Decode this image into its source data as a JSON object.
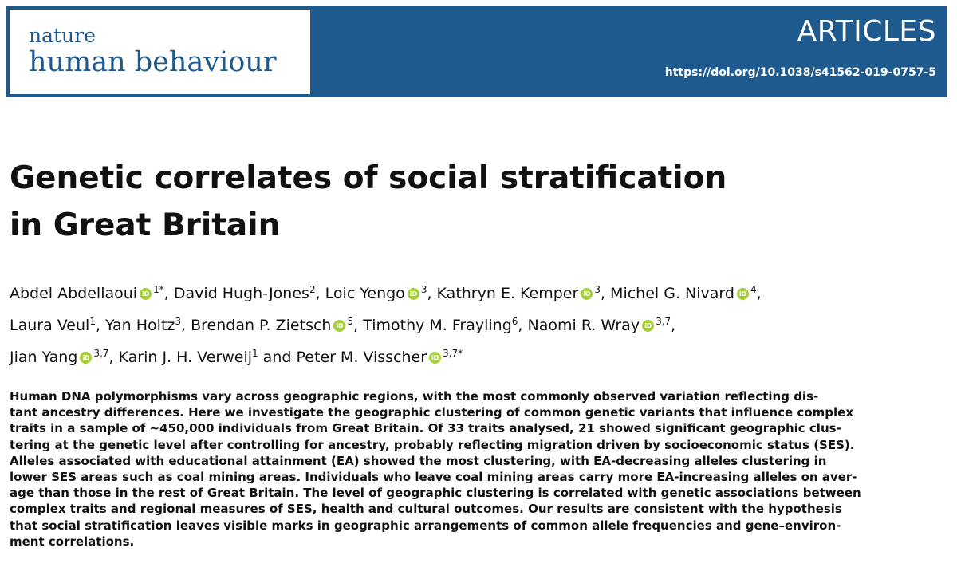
{
  "journal": {
    "name_small": "nature",
    "name_big": "human behaviour",
    "section": "ARTICLES",
    "doi": "https://doi.org/10.1038/s41562-019-0757-5",
    "brand_color": "#1e5a8e",
    "orcid_color": "#a6ce39"
  },
  "article": {
    "title_lines": [
      "Genetic correlates of social stratification",
      "in Great Britain"
    ],
    "author_lines": [
      [
        {
          "name": "Abdel Abdellaoui",
          "orcid": true,
          "sup": "1*",
          "sep": ", "
        },
        {
          "name": "David Hugh-Jones",
          "orcid": false,
          "sup": "2",
          "sep": ", "
        },
        {
          "name": "Loic Yengo",
          "orcid": true,
          "sup": "3",
          "sep": ", "
        },
        {
          "name": "Kathryn E. Kemper",
          "orcid": true,
          "sup": "3",
          "sep": ", "
        },
        {
          "name": "Michel G. Nivard",
          "orcid": true,
          "sup": "4",
          "sep": ","
        }
      ],
      [
        {
          "name": "Laura Veul",
          "orcid": false,
          "sup": "1",
          "sep": ", "
        },
        {
          "name": "Yan Holtz",
          "orcid": false,
          "sup": "3",
          "sep": ", "
        },
        {
          "name": "Brendan P. Zietsch",
          "orcid": true,
          "sup": "5",
          "sep": ", "
        },
        {
          "name": "Timothy M. Frayling",
          "orcid": false,
          "sup": "6",
          "sep": ", "
        },
        {
          "name": "Naomi R. Wray",
          "orcid": true,
          "sup": "3,7",
          "sep": ","
        }
      ],
      [
        {
          "name": "Jian Yang",
          "orcid": true,
          "sup": "3,7",
          "sep": ", "
        },
        {
          "name": "Karin J. H. Verweij",
          "orcid": false,
          "sup": "1",
          "sep": " and "
        },
        {
          "name": "Peter M. Visscher",
          "orcid": true,
          "sup": "3,7*",
          "sep": ""
        }
      ]
    ],
    "orcid_icon_text": "iD",
    "abstract_lines": [
      "Human DNA polymorphisms vary across geographic regions, with the most commonly observed variation reflecting dis-",
      "tant ancestry differences. Here we investigate the geographic clustering of common genetic variants that influence complex",
      "traits in a sample of ~450,000 individuals from Great Britain. Of 33 traits analysed, 21 showed significant geographic clus-",
      "tering at the genetic level after controlling for ancestry, probably reflecting migration driven by socioeconomic status (SES).",
      "Alleles associated with educational attainment (EA) showed the most clustering, with EA-decreasing alleles clustering in",
      "lower SES areas such as coal mining areas. Individuals who leave coal mining areas carry more EA-increasing alleles on aver-",
      "age than those in the rest of Great Britain. The level of geographic clustering is correlated with genetic associations between",
      "complex traits and regional measures of SES, health and cultural outcomes. Our results are consistent with the hypothesis",
      "that social stratification leaves visible marks in geographic arrangements of common allele frequencies and gene–environ-",
      "ment correlations."
    ]
  }
}
